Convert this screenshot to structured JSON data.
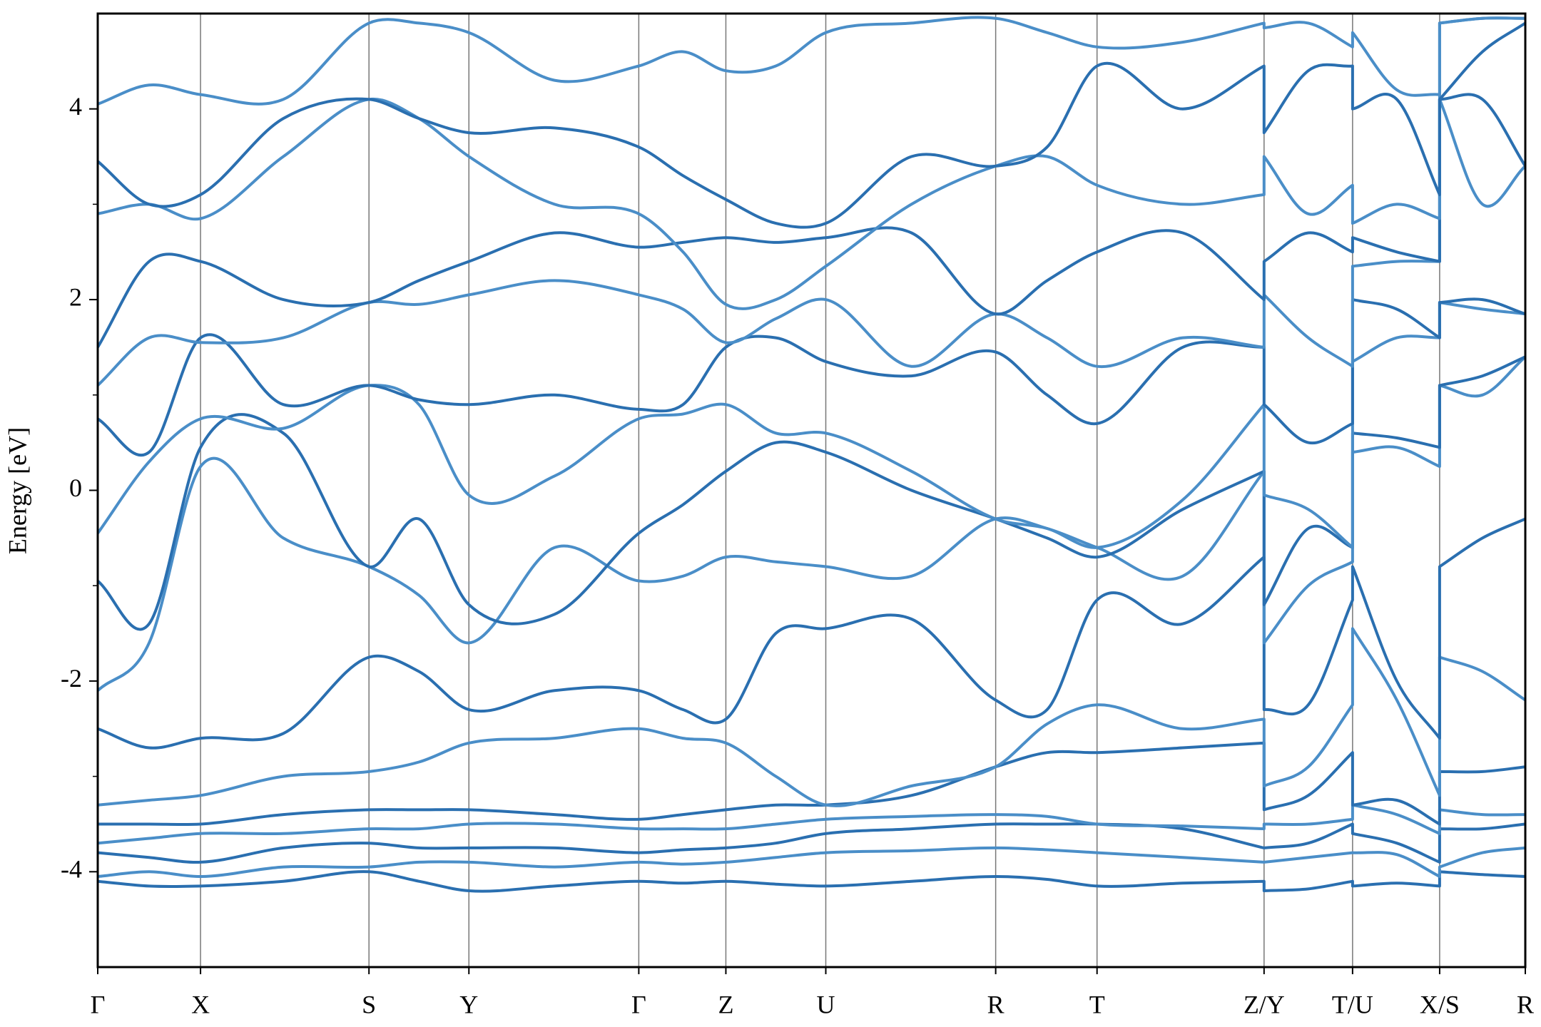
{
  "chart_data": {
    "type": "line",
    "ylabel": "Energy [eV]",
    "ylim": [
      -5,
      5
    ],
    "yticks": [
      -4,
      -2,
      0,
      2,
      4
    ],
    "yticks_minor": [
      -3,
      -1,
      1,
      3
    ],
    "xlim": [
      0,
      1
    ],
    "xticks": [
      {
        "value": 0,
        "label": "Γ"
      },
      {
        "value": 0.072,
        "label": "X"
      },
      {
        "value": 0.19,
        "label": "S"
      },
      {
        "value": 0.26,
        "label": "Y"
      },
      {
        "value": 0.379,
        "label": "Γ"
      },
      {
        "value": 0.44,
        "label": "Z"
      },
      {
        "value": 0.51,
        "label": "U"
      },
      {
        "value": 0.629,
        "label": "R"
      },
      {
        "value": 0.7,
        "label": "T"
      },
      {
        "value": 0.817,
        "label": "Z/Y"
      },
      {
        "value": 0.879,
        "label": "T/U"
      },
      {
        "value": 0.94,
        "label": "X/S"
      },
      {
        "value": 1,
        "label": "R"
      }
    ],
    "grid": true,
    "x": [
      0,
      0.036,
      0.072,
      0.13,
      0.19,
      0.225,
      0.26,
      0.32,
      0.379,
      0.41,
      0.44,
      0.475,
      0.51,
      0.57,
      0.629,
      0.665,
      0.7,
      0.76,
      0.817,
      0.817,
      0.848,
      0.879,
      0.879,
      0.91,
      0.94,
      0.94,
      0.97,
      1
    ],
    "series": [
      {
        "color": "#2a6fb0",
        "values": [
          -4.1,
          -4.15,
          -4.15,
          -4.1,
          -4.0,
          -4.1,
          -4.2,
          -4.15,
          -4.1,
          -4.12,
          -4.1,
          -4.13,
          -4.15,
          -4.1,
          -4.05,
          -4.08,
          -4.15,
          -4.12,
          -4.1,
          -4.2,
          -4.18,
          -4.1,
          -4.15,
          -4.12,
          -4.15,
          -4.0,
          -4.03,
          -4.05
        ]
      },
      {
        "color": "#4a8ec8",
        "values": [
          -4.05,
          -4.0,
          -4.05,
          -3.95,
          -3.95,
          -3.9,
          -3.9,
          -3.95,
          -3.9,
          -3.92,
          -3.9,
          -3.85,
          -3.8,
          -3.78,
          -3.75,
          -3.77,
          -3.8,
          -3.85,
          -3.9,
          -3.9,
          -3.85,
          -3.8,
          -3.8,
          -3.82,
          -4.05,
          -3.95,
          -3.8,
          -3.75
        ]
      },
      {
        "color": "#2a6fb0",
        "values": [
          -3.8,
          -3.85,
          -3.9,
          -3.75,
          -3.7,
          -3.75,
          -3.75,
          -3.75,
          -3.8,
          -3.77,
          -3.75,
          -3.7,
          -3.6,
          -3.55,
          -3.5,
          -3.5,
          -3.5,
          -3.55,
          -3.75,
          -3.75,
          -3.7,
          -3.5,
          -3.6,
          -3.7,
          -3.9,
          -3.55,
          -3.55,
          -3.5
        ]
      },
      {
        "color": "#4a8ec8",
        "values": [
          -3.7,
          -3.65,
          -3.6,
          -3.6,
          -3.55,
          -3.55,
          -3.5,
          -3.5,
          -3.55,
          -3.55,
          -3.55,
          -3.5,
          -3.45,
          -3.42,
          -3.4,
          -3.42,
          -3.5,
          -3.52,
          -3.55,
          -3.5,
          -3.5,
          -3.45,
          -3.3,
          -3.4,
          -3.6,
          -3.35,
          -3.4,
          -3.4
        ]
      },
      {
        "color": "#2a6fb0",
        "values": [
          -3.5,
          -3.5,
          -3.5,
          -3.4,
          -3.35,
          -3.35,
          -3.35,
          -3.4,
          -3.45,
          -3.4,
          -3.35,
          -3.3,
          -3.3,
          -3.2,
          -2.9,
          -2.75,
          -2.75,
          -2.7,
          -2.65,
          -3.35,
          -3.2,
          -2.75,
          -3.3,
          -3.25,
          -3.5,
          -2.95,
          -2.95,
          -2.9
        ]
      },
      {
        "color": "#4a8ec8",
        "values": [
          -3.3,
          -3.25,
          -3.2,
          -3.0,
          -2.95,
          -2.85,
          -2.65,
          -2.6,
          -2.5,
          -2.6,
          -2.65,
          -3.0,
          -3.3,
          -3.1,
          -2.9,
          -2.45,
          -2.25,
          -2.5,
          -2.4,
          -3.1,
          -2.9,
          -2.25,
          -1.45,
          -2.2,
          -3.2,
          -1.75,
          -1.9,
          -2.2
        ]
      },
      {
        "color": "#2a6fb0",
        "values": [
          -2.5,
          -2.7,
          -2.6,
          -2.55,
          -1.75,
          -1.9,
          -2.3,
          -2.1,
          -2.1,
          -2.3,
          -2.4,
          -1.5,
          -1.45,
          -1.35,
          -2.2,
          -2.3,
          -1.15,
          -1.4,
          -0.7,
          -2.3,
          -2.25,
          -1.15,
          -0.8,
          -2.0,
          -2.6,
          -0.8,
          -0.5,
          -0.3
        ]
      },
      {
        "color": "#4a8ec8",
        "values": [
          -2.1,
          -1.6,
          0.25,
          -0.5,
          -0.8,
          -1.1,
          -1.6,
          -0.6,
          -0.95,
          -0.9,
          -0.7,
          -0.75,
          -0.8,
          -0.9,
          -0.3,
          -0.4,
          -0.6,
          -0.9,
          0.2,
          -1.6,
          -1.0,
          -0.75,
          0.4,
          0.45,
          0.25,
          1.1,
          1.0,
          1.4
        ]
      },
      {
        "color": "#2a6fb0",
        "values": [
          -0.95,
          -1.4,
          0.45,
          0.6,
          -0.8,
          -0.3,
          -1.2,
          -1.3,
          -0.45,
          -0.15,
          0.2,
          0.5,
          0.4,
          0.0,
          -0.3,
          -0.5,
          -0.7,
          -0.2,
          0.2,
          -1.2,
          -0.4,
          -0.6,
          0.6,
          0.55,
          0.45,
          1.1,
          1.2,
          1.4
        ]
      },
      {
        "color": "#4a8ec8",
        "values": [
          -0.45,
          0.3,
          0.75,
          0.65,
          1.1,
          0.9,
          -0.05,
          0.15,
          0.75,
          0.8,
          0.9,
          0.6,
          0.6,
          0.2,
          -0.3,
          -0.4,
          -0.6,
          -0.1,
          0.9,
          -0.05,
          -0.2,
          -0.6,
          1.35,
          1.6,
          1.6,
          1.97,
          1.9,
          1.85
        ]
      },
      {
        "color": "#2a6fb0",
        "values": [
          0.75,
          0.4,
          1.6,
          0.9,
          1.1,
          0.95,
          0.9,
          1.0,
          0.85,
          0.9,
          1.5,
          1.6,
          1.35,
          1.2,
          1.45,
          1.0,
          0.7,
          1.5,
          1.5,
          0.9,
          0.5,
          0.7,
          2.0,
          1.9,
          1.6,
          1.97,
          2.0,
          1.85
        ]
      },
      {
        "color": "#4a8ec8",
        "values": [
          1.1,
          1.6,
          1.55,
          1.6,
          1.97,
          1.95,
          2.05,
          2.2,
          2.05,
          1.9,
          1.55,
          1.8,
          2.0,
          1.3,
          1.85,
          1.6,
          1.3,
          1.6,
          1.5,
          2.05,
          1.6,
          1.3,
          2.35,
          2.4,
          2.4,
          4.1,
          3.0,
          3.4
        ]
      },
      {
        "color": "#2a6fb0",
        "values": [
          1.5,
          2.4,
          2.4,
          2.0,
          1.97,
          2.2,
          2.4,
          2.7,
          2.55,
          2.6,
          2.65,
          2.6,
          2.65,
          2.7,
          1.85,
          2.2,
          2.5,
          2.7,
          2.0,
          2.4,
          2.7,
          2.5,
          2.65,
          2.5,
          2.4,
          4.1,
          4.1,
          3.4
        ]
      },
      {
        "color": "#4a8ec8",
        "values": [
          2.9,
          3.0,
          2.85,
          3.5,
          4.1,
          3.9,
          3.5,
          3.0,
          2.9,
          2.5,
          1.95,
          2.0,
          2.35,
          3.0,
          3.4,
          3.5,
          3.2,
          3.0,
          3.1,
          3.5,
          2.9,
          3.2,
          2.8,
          3.0,
          2.85,
          4.9,
          4.95,
          4.95
        ]
      },
      {
        "color": "#2a6fb0",
        "values": [
          3.45,
          3.0,
          3.1,
          3.9,
          4.1,
          3.9,
          3.75,
          3.8,
          3.6,
          3.3,
          3.05,
          2.8,
          2.8,
          3.5,
          3.4,
          3.6,
          4.45,
          4.0,
          4.45,
          3.75,
          4.4,
          4.45,
          4.0,
          4.1,
          3.1,
          4.1,
          4.6,
          4.9
        ]
      },
      {
        "color": "#4a8ec8",
        "values": [
          4.05,
          4.25,
          4.15,
          4.1,
          4.9,
          4.9,
          4.8,
          4.3,
          4.45,
          4.6,
          4.4,
          4.45,
          4.8,
          4.9,
          4.95,
          4.8,
          4.65,
          4.7,
          4.9,
          4.85,
          4.9,
          4.65,
          4.8,
          4.2,
          4.15,
          4.9,
          4.95,
          4.95
        ]
      }
    ]
  }
}
